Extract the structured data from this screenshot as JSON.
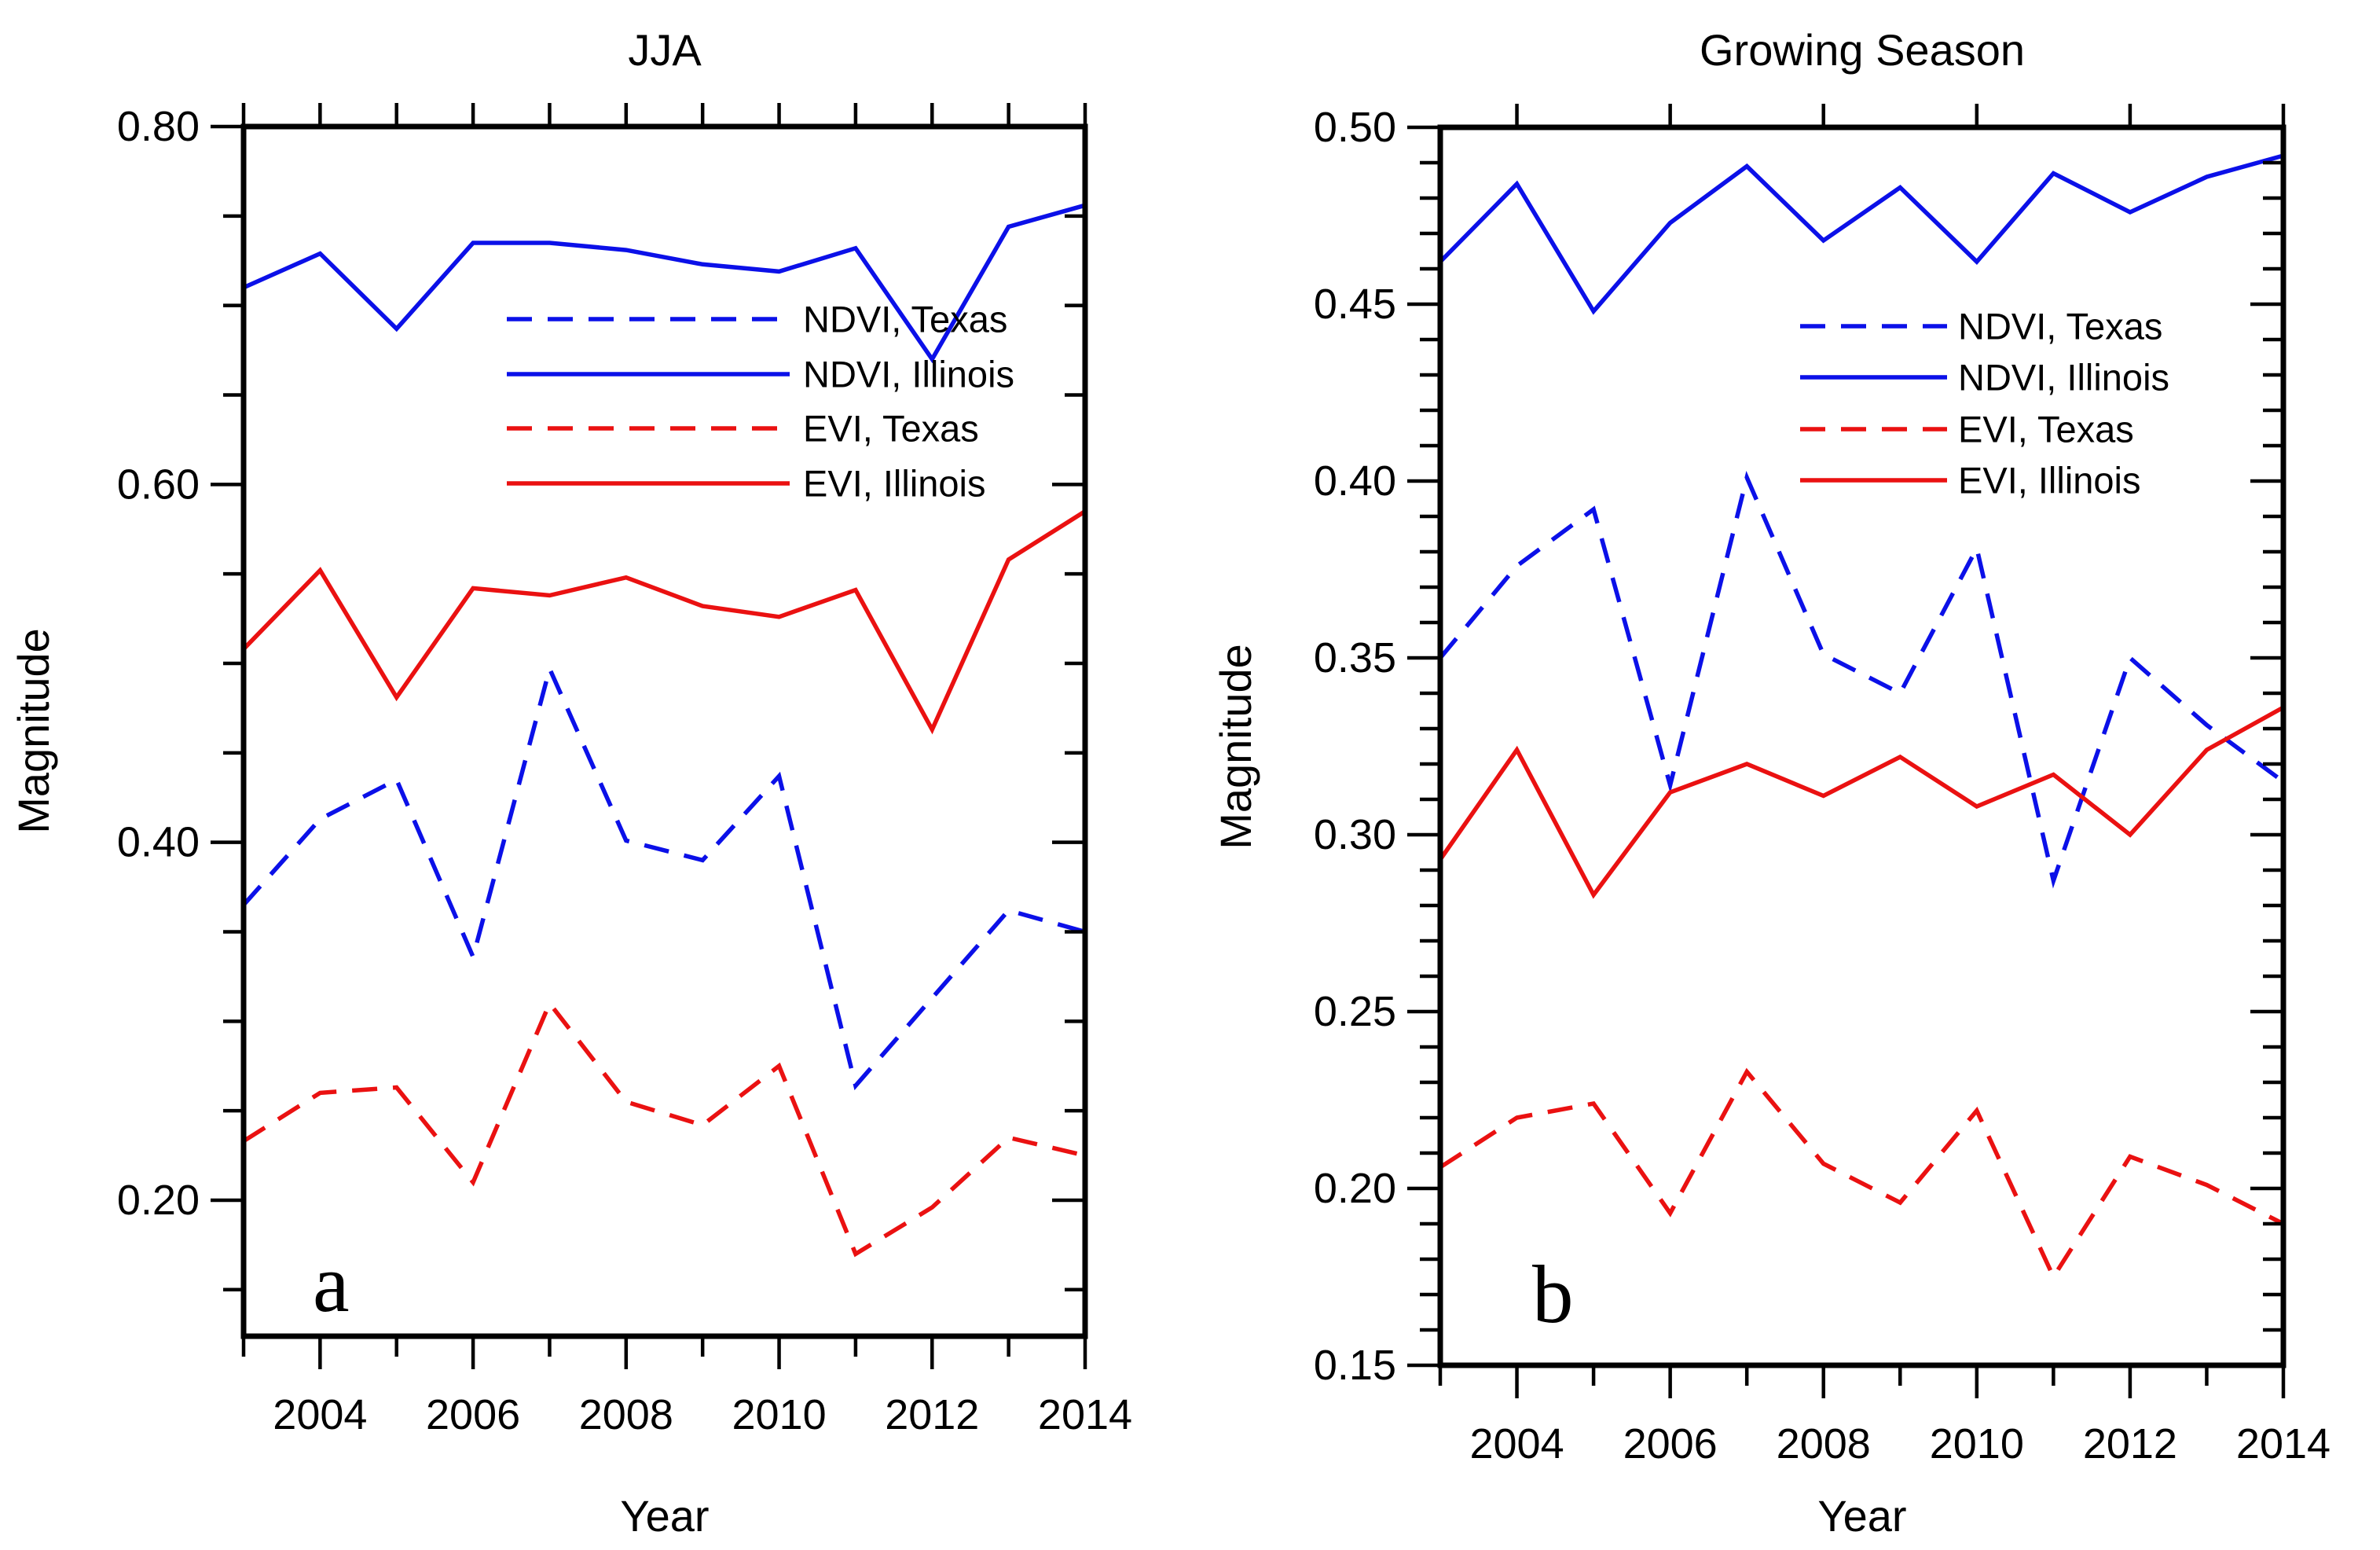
{
  "figure": {
    "background": "#ffffff",
    "axis_color": "#000000",
    "text_color": "#000000",
    "blue": "#0b10e8",
    "red": "#ea1111"
  },
  "chart_data": [
    {
      "type": "line",
      "panel_label": "a",
      "title": "JJA",
      "xlabel": "Year",
      "ylabel": "Magnitude",
      "x": [
        2003,
        2004,
        2005,
        2006,
        2007,
        2008,
        2009,
        2010,
        2011,
        2012,
        2013,
        2014
      ],
      "xlim": [
        2003,
        2014
      ],
      "ylim": [
        0.124,
        0.8
      ],
      "xtick_major": [
        2004,
        2006,
        2008,
        2010,
        2012,
        2014
      ],
      "xtick_labels": [
        "2004",
        "2006",
        "2008",
        "2010",
        "2012",
        "2014"
      ],
      "xtick_minor": [
        2003,
        2005,
        2007,
        2009,
        2011,
        2013
      ],
      "top_ticks": [
        2003,
        2004,
        2005,
        2006,
        2007,
        2008,
        2009,
        2010,
        2011,
        2012,
        2013,
        2014
      ],
      "ytick_major": [
        0.8,
        0.6,
        0.4,
        0.2
      ],
      "ytick_labels": [
        "0.80",
        "0.60",
        "0.40",
        "0.20"
      ],
      "ytick_minor": [
        0.75,
        0.7,
        0.65,
        0.55,
        0.5,
        0.45,
        0.35,
        0.3,
        0.25,
        0.15
      ],
      "grid": false,
      "legend_position": "inside upper right area",
      "series": [
        {
          "name": "NDVI, Texas",
          "color": "#0b10e8",
          "dashed": true,
          "values": [
            0.365,
            0.413,
            0.435,
            0.336,
            0.497,
            0.401,
            0.39,
            0.437,
            0.264,
            0.313,
            0.362,
            0.35
          ]
        },
        {
          "name": "NDVI, Illinois",
          "color": "#0b10e8",
          "dashed": false,
          "values": [
            0.71,
            0.729,
            0.687,
            0.735,
            0.735,
            0.731,
            0.723,
            0.719,
            0.732,
            0.67,
            0.744,
            0.756
          ]
        },
        {
          "name": "EVI, Texas",
          "color": "#ea1111",
          "dashed": true,
          "values": [
            0.233,
            0.26,
            0.263,
            0.21,
            0.31,
            0.255,
            0.242,
            0.275,
            0.17,
            0.196,
            0.235,
            0.225
          ]
        },
        {
          "name": "EVI, Illinois",
          "color": "#ea1111",
          "dashed": false,
          "values": [
            0.508,
            0.552,
            0.481,
            0.542,
            0.538,
            0.548,
            0.532,
            0.526,
            0.541,
            0.463,
            0.558,
            0.585
          ]
        }
      ]
    },
    {
      "type": "line",
      "panel_label": "b",
      "title": "Growing Season",
      "xlabel": "Year",
      "ylabel": "Magnitude",
      "x": [
        2003,
        2004,
        2005,
        2006,
        2007,
        2008,
        2009,
        2010,
        2011,
        2012,
        2013,
        2014
      ],
      "xlim": [
        2003,
        2014
      ],
      "ylim": [
        0.15,
        0.5
      ],
      "xtick_major": [
        2004,
        2006,
        2008,
        2010,
        2012,
        2014
      ],
      "xtick_labels": [
        "2004",
        "2006",
        "2008",
        "2010",
        "2012",
        "2014"
      ],
      "xtick_minor": [
        2003,
        2005,
        2007,
        2009,
        2011,
        2013
      ],
      "top_ticks": [
        2004,
        2006,
        2008,
        2010,
        2012,
        2014
      ],
      "ytick_major": [
        0.5,
        0.45,
        0.4,
        0.35,
        0.3,
        0.25,
        0.2,
        0.15
      ],
      "ytick_labels": [
        "0.50",
        "0.45",
        "0.40",
        "0.35",
        "0.30",
        "0.25",
        "0.20",
        "0.15"
      ],
      "ytick_minor": [
        0.49,
        0.48,
        0.47,
        0.46,
        0.44,
        0.43,
        0.42,
        0.41,
        0.39,
        0.38,
        0.37,
        0.36,
        0.34,
        0.33,
        0.32,
        0.31,
        0.29,
        0.28,
        0.27,
        0.26,
        0.24,
        0.23,
        0.22,
        0.21,
        0.19,
        0.18,
        0.17,
        0.16
      ],
      "grid": false,
      "legend_position": "inside upper right area",
      "series": [
        {
          "name": "NDVI, Texas",
          "color": "#0b10e8",
          "dashed": true,
          "values": [
            0.35,
            0.376,
            0.392,
            0.314,
            0.401,
            0.351,
            0.34,
            0.381,
            0.287,
            0.35,
            0.331,
            0.315
          ]
        },
        {
          "name": "NDVI, Illinois",
          "color": "#0b10e8",
          "dashed": false,
          "values": [
            0.462,
            0.484,
            0.448,
            0.473,
            0.489,
            0.468,
            0.483,
            0.462,
            0.487,
            0.476,
            0.486,
            0.492
          ]
        },
        {
          "name": "EVI, Texas",
          "color": "#ea1111",
          "dashed": true,
          "values": [
            0.206,
            0.22,
            0.224,
            0.193,
            0.233,
            0.207,
            0.196,
            0.222,
            0.175,
            0.209,
            0.201,
            0.19
          ]
        },
        {
          "name": "EVI, Illinois",
          "color": "#ea1111",
          "dashed": false,
          "values": [
            0.293,
            0.324,
            0.283,
            0.312,
            0.32,
            0.311,
            0.322,
            0.308,
            0.317,
            0.3,
            0.324,
            0.336
          ]
        }
      ]
    }
  ]
}
